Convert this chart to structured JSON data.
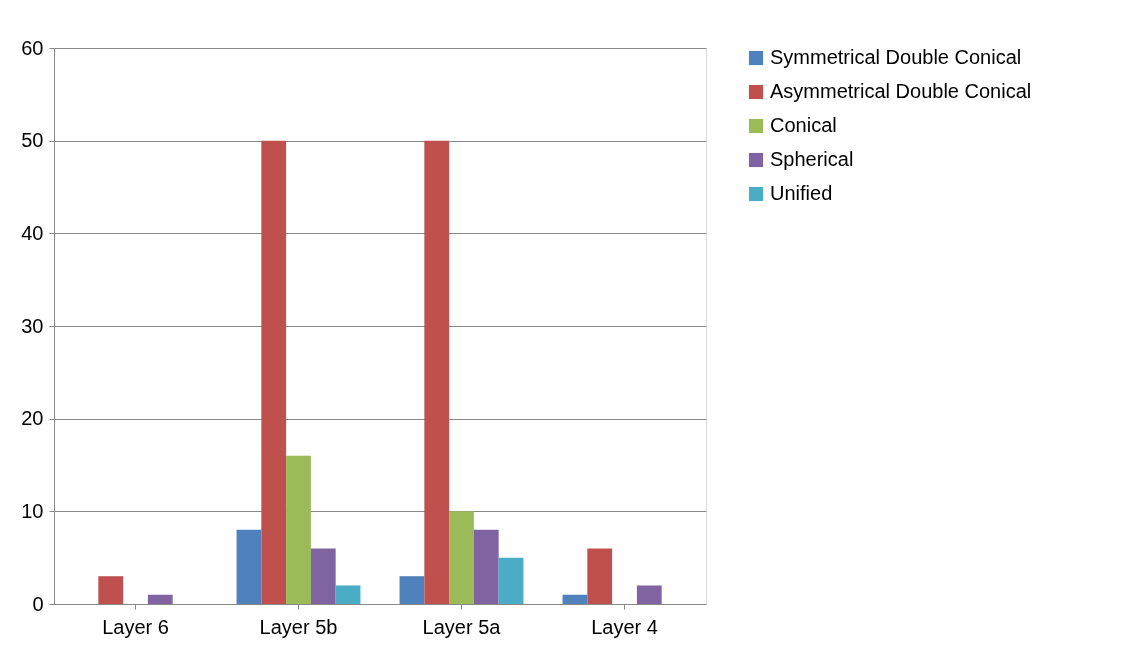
{
  "chart_data": {
    "type": "bar",
    "categories": [
      "Layer 6",
      "Layer 5b",
      "Layer 5a",
      "Layer 4"
    ],
    "series": [
      {
        "name": "Symmetrical Double Conical",
        "color": "#4f81bd",
        "values": [
          0,
          8,
          3,
          1
        ]
      },
      {
        "name": "Asymmetrical Double Conical",
        "color": "#c0504d",
        "values": [
          3,
          50,
          50,
          6
        ]
      },
      {
        "name": "Conical",
        "color": "#9bbb59",
        "values": [
          0,
          16,
          10,
          0
        ]
      },
      {
        "name": "Spherical",
        "color": "#8064a2",
        "values": [
          1,
          6,
          8,
          2
        ]
      },
      {
        "name": "Unified",
        "color": "#4bacc6",
        "values": [
          0,
          2,
          5,
          0
        ]
      }
    ],
    "ylim": [
      0,
      60
    ],
    "yticks": [
      0,
      10,
      20,
      30,
      40,
      50,
      60
    ],
    "grid": "y",
    "legend": "right"
  }
}
